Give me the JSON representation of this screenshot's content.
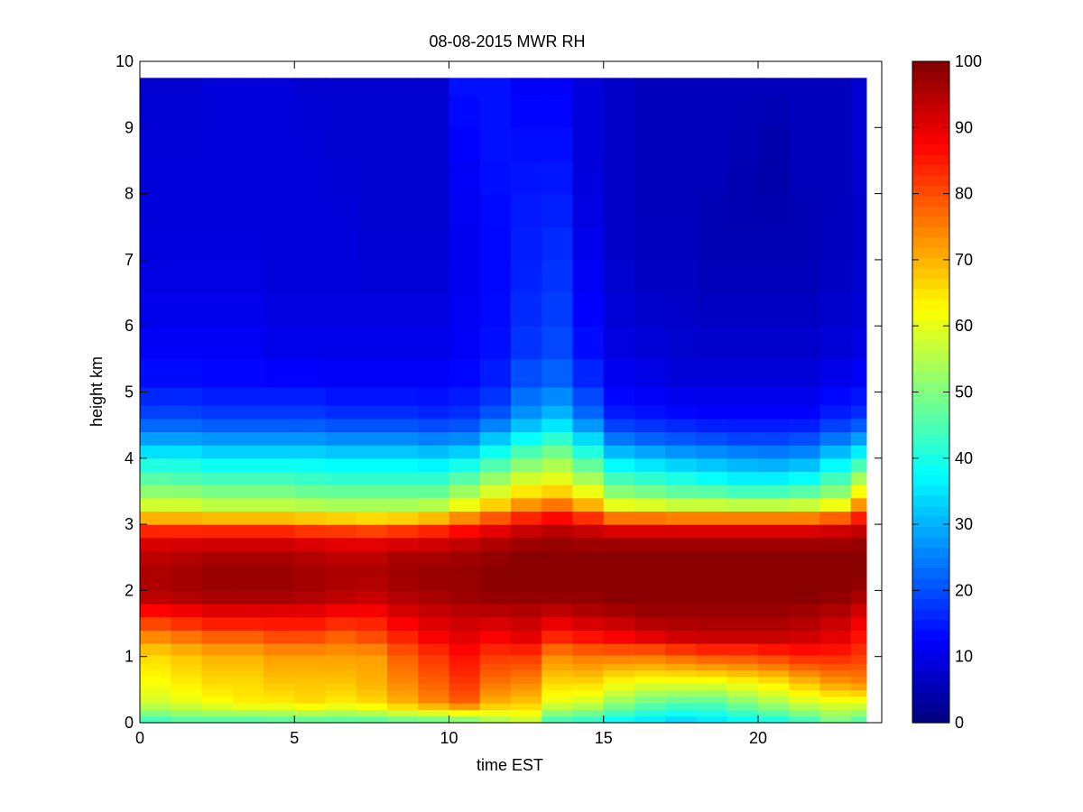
{
  "chart_data": {
    "type": "heatmap",
    "title": "08-08-2015 MWR RH",
    "xlabel": "time EST",
    "ylabel": "height km",
    "xlim": [
      0,
      24
    ],
    "ylim": [
      0,
      10
    ],
    "x_ticks": [
      0,
      5,
      10,
      15,
      20
    ],
    "y_ticks": [
      0,
      1,
      2,
      3,
      4,
      5,
      6,
      7,
      8,
      9,
      10
    ],
    "colorbar": {
      "colormap": "jet",
      "clim": [
        0,
        100
      ],
      "ticks": [
        0,
        10,
        20,
        30,
        40,
        50,
        60,
        70,
        80,
        90,
        100
      ]
    },
    "grid": false,
    "data_extent": {
      "time_start": 0,
      "time_end": 23.5,
      "height_top": 9.75
    },
    "x": [
      0.5,
      1.5,
      2.5,
      3.5,
      4.5,
      5.5,
      6.5,
      7.5,
      8.5,
      9.5,
      10.5,
      11.5,
      12.5,
      13.5,
      14.5,
      15.5,
      16.5,
      17.5,
      18.5,
      19.5,
      20.5,
      21.5,
      22.5,
      23
    ],
    "y": [
      0.05,
      0.15,
      0.25,
      0.35,
      0.45,
      0.55,
      0.65,
      0.75,
      0.85,
      0.95,
      1.1,
      1.3,
      1.5,
      1.7,
      1.9,
      2.1,
      2.3,
      2.5,
      2.7,
      2.9,
      3.1,
      3.3,
      3.5,
      3.7,
      3.9,
      4.1,
      4.3,
      4.5,
      4.7,
      4.9,
      5.25,
      5.75,
      6.25,
      6.75,
      7.25,
      7.75,
      8.25,
      8.75,
      9.25,
      9.75
    ],
    "profile": {
      "heights": [
        0,
        0.3,
        0.6,
        1.0,
        1.3,
        1.6,
        1.9,
        2.2,
        2.5,
        2.8,
        3.0,
        3.2,
        3.4,
        3.7,
        4.0,
        4.3,
        4.6,
        5.0,
        5.5,
        6.5,
        7.5,
        8.5,
        9.75
      ],
      "rh_by_hour": [
        [
          42,
          58,
          62,
          66,
          74,
          84,
          94,
          96,
          94,
          90,
          78,
          62,
          54,
          46,
          38,
          28,
          20,
          15,
          12,
          10,
          9,
          9,
          8
        ],
        [
          44,
          60,
          64,
          68,
          76,
          86,
          95,
          97,
          95,
          90,
          78,
          62,
          54,
          45,
          38,
          28,
          20,
          15,
          12,
          10,
          9,
          9,
          8
        ],
        [
          44,
          62,
          66,
          70,
          78,
          88,
          96,
          98,
          96,
          90,
          78,
          60,
          52,
          44,
          36,
          27,
          19,
          14,
          12,
          10,
          9,
          9,
          9
        ],
        [
          43,
          64,
          66,
          70,
          78,
          88,
          96,
          98,
          96,
          90,
          78,
          60,
          52,
          44,
          36,
          27,
          19,
          14,
          12,
          10,
          9,
          9,
          9
        ],
        [
          44,
          64,
          68,
          72,
          80,
          88,
          96,
          98,
          96,
          90,
          78,
          60,
          52,
          44,
          36,
          27,
          19,
          14,
          11,
          9,
          9,
          9,
          9
        ],
        [
          44,
          66,
          68,
          72,
          80,
          88,
          95,
          97,
          95,
          89,
          76,
          60,
          50,
          43,
          36,
          27,
          19,
          14,
          11,
          9,
          9,
          9,
          8
        ],
        [
          44,
          64,
          68,
          72,
          78,
          86,
          94,
          96,
          94,
          88,
          76,
          58,
          50,
          42,
          35,
          26,
          18,
          13,
          11,
          9,
          9,
          8,
          8
        ],
        [
          44,
          66,
          70,
          72,
          80,
          86,
          93,
          96,
          94,
          88,
          74,
          58,
          50,
          42,
          35,
          26,
          18,
          13,
          11,
          9,
          8,
          8,
          8
        ],
        [
          45,
          70,
          74,
          78,
          84,
          90,
          95,
          97,
          96,
          89,
          76,
          58,
          50,
          42,
          35,
          26,
          18,
          13,
          11,
          9,
          8,
          8,
          8
        ],
        [
          45,
          74,
          78,
          82,
          88,
          92,
          96,
          98,
          96,
          90,
          78,
          60,
          50,
          42,
          34,
          25,
          17,
          13,
          11,
          9,
          8,
          8,
          8
        ],
        [
          46,
          78,
          82,
          86,
          90,
          93,
          97,
          98,
          97,
          92,
          82,
          66,
          56,
          46,
          36,
          26,
          18,
          14,
          12,
          11,
          11,
          12,
          14
        ],
        [
          52,
          70,
          76,
          82,
          88,
          93,
          98,
          99,
          98,
          94,
          86,
          72,
          62,
          52,
          42,
          32,
          22,
          16,
          14,
          13,
          13,
          14,
          14
        ],
        [
          56,
          68,
          74,
          82,
          90,
          94,
          98,
          99,
          99,
          96,
          90,
          78,
          68,
          58,
          48,
          38,
          28,
          22,
          18,
          16,
          15,
          14,
          12
        ],
        [
          42,
          60,
          66,
          74,
          84,
          92,
          98,
          99,
          99,
          97,
          92,
          82,
          70,
          60,
          52,
          42,
          32,
          24,
          20,
          18,
          16,
          14,
          12
        ],
        [
          40,
          58,
          66,
          76,
          86,
          94,
          98,
          99,
          99,
          96,
          90,
          76,
          64,
          54,
          44,
          34,
          24,
          18,
          14,
          12,
          10,
          9,
          9
        ],
        [
          36,
          52,
          62,
          76,
          88,
          95,
          99,
          99,
          99,
          96,
          86,
          66,
          54,
          44,
          34,
          24,
          16,
          12,
          10,
          8,
          7,
          7,
          7
        ],
        [
          34,
          48,
          60,
          76,
          90,
          97,
          99,
          99,
          99,
          96,
          86,
          66,
          52,
          42,
          32,
          22,
          15,
          11,
          9,
          7,
          6,
          6,
          6
        ],
        [
          32,
          46,
          60,
          78,
          92,
          97,
          99,
          99,
          99,
          96,
          86,
          64,
          50,
          40,
          30,
          21,
          14,
          10,
          8,
          7,
          6,
          6,
          6
        ],
        [
          34,
          46,
          60,
          80,
          93,
          97,
          99,
          99,
          99,
          96,
          86,
          64,
          50,
          38,
          29,
          20,
          13,
          10,
          8,
          6,
          5,
          6,
          6
        ],
        [
          36,
          50,
          62,
          80,
          93,
          97,
          99,
          99,
          99,
          96,
          86,
          64,
          48,
          36,
          28,
          19,
          13,
          10,
          8,
          6,
          5,
          5,
          6
        ],
        [
          38,
          54,
          64,
          82,
          93,
          97,
          99,
          99,
          99,
          96,
          86,
          64,
          48,
          36,
          27,
          19,
          13,
          10,
          8,
          6,
          5,
          4,
          6
        ],
        [
          42,
          58,
          68,
          84,
          92,
          96,
          99,
          99,
          99,
          96,
          86,
          64,
          50,
          38,
          28,
          20,
          13,
          10,
          8,
          6,
          5,
          6,
          6
        ],
        [
          48,
          60,
          72,
          84,
          90,
          94,
          98,
          99,
          99,
          96,
          88,
          68,
          54,
          44,
          34,
          24,
          16,
          12,
          9,
          7,
          6,
          6,
          6
        ],
        [
          44,
          60,
          74,
          82,
          86,
          90,
          96,
          99,
          99,
          97,
          90,
          80,
          66,
          54,
          40,
          28,
          18,
          13,
          10,
          8,
          7,
          8,
          8
        ]
      ]
    }
  }
}
